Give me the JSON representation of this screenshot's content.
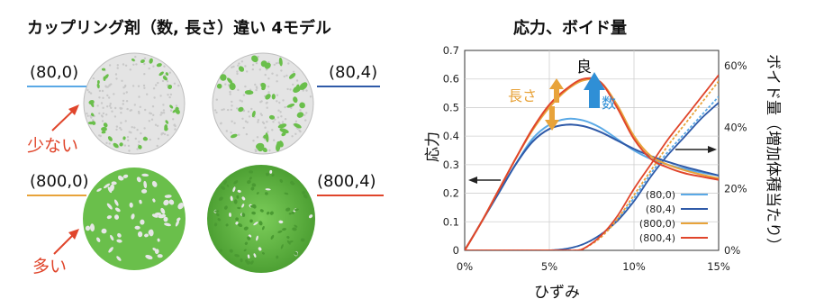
{
  "left_panel": {
    "title": "カップリング剤（数, 長さ）違い 4モデル",
    "models": [
      {
        "label": "(80,0)",
        "line_color": "#5aa9e6"
      },
      {
        "label": "(80,4)",
        "line_color": "#2f5aa8"
      },
      {
        "label": "(800,0)",
        "line_color": "#e8a33a"
      },
      {
        "label": "(800,4)",
        "line_color": "#e0452b"
      }
    ],
    "annotations": {
      "few": "少ない",
      "many": "多い"
    },
    "colors": {
      "particle": "#6abf4b",
      "matrix": "#d9d9d9",
      "arrow": "#e0452b"
    }
  },
  "right_panel": {
    "title": "応力、ボイド量",
    "annotations": {
      "good": "良",
      "length": "長さ",
      "number": "数"
    },
    "chart_data": {
      "type": "line",
      "xlabel": "ひずみ",
      "ylabel_left": "応力",
      "ylabel_right": "ボイド量（増加体積当たり）",
      "xlim": [
        0,
        15
      ],
      "ylim_left": [
        0,
        0.7
      ],
      "ylim_right": [
        0,
        65
      ],
      "x_ticks": [
        "0%",
        "5%",
        "10%",
        "15%"
      ],
      "y_ticks_left": [
        "0",
        "0.1",
        "0.2",
        "0.3",
        "0.4",
        "0.5",
        "0.6",
        "0.7"
      ],
      "y_ticks_right": [
        "0%",
        "20%",
        "40%",
        "60%"
      ],
      "grid": true,
      "legend_position": "bottom-right",
      "series": [
        {
          "name": "(80,0)",
          "color": "#5aa9e6",
          "stress": [
            [
              0,
              0
            ],
            [
              1,
              0.1
            ],
            [
              2,
              0.2
            ],
            [
              3,
              0.3
            ],
            [
              4,
              0.39
            ],
            [
              5,
              0.44
            ],
            [
              6,
              0.46
            ],
            [
              7,
              0.455
            ],
            [
              8,
              0.43
            ],
            [
              9,
              0.39
            ],
            [
              10,
              0.35
            ],
            [
              11,
              0.32
            ],
            [
              12,
              0.3
            ],
            [
              13,
              0.285
            ],
            [
              14,
              0.272
            ],
            [
              15,
              0.262
            ]
          ],
          "void": [
            [
              0,
              0
            ],
            [
              2,
              0
            ],
            [
              4,
              0
            ],
            [
              5,
              0
            ],
            [
              6,
              0.5
            ],
            [
              7,
              2
            ],
            [
              8,
              5
            ],
            [
              9,
              10
            ],
            [
              10,
              17
            ],
            [
              11,
              25
            ],
            [
              12,
              32
            ],
            [
              13,
              38
            ],
            [
              14,
              44
            ],
            [
              15,
              50
            ]
          ]
        },
        {
          "name": "(80,4)",
          "color": "#2f5aa8",
          "stress": [
            [
              0,
              0
            ],
            [
              1,
              0.1
            ],
            [
              2,
              0.2
            ],
            [
              3,
              0.3
            ],
            [
              4,
              0.38
            ],
            [
              5,
              0.425
            ],
            [
              6,
              0.44
            ],
            [
              7,
              0.435
            ],
            [
              8,
              0.415
            ],
            [
              9,
              0.385
            ],
            [
              10,
              0.355
            ],
            [
              11,
              0.33
            ],
            [
              12,
              0.31
            ],
            [
              13,
              0.292
            ],
            [
              14,
              0.277
            ],
            [
              15,
              0.262
            ]
          ],
          "void": [
            [
              0,
              0
            ],
            [
              2,
              0
            ],
            [
              4,
              0
            ],
            [
              5,
              0
            ],
            [
              6,
              0.5
            ],
            [
              7,
              2
            ],
            [
              8,
              5
            ],
            [
              9,
              9.5
            ],
            [
              10,
              16
            ],
            [
              11,
              24
            ],
            [
              12,
              31
            ],
            [
              13,
              37
            ],
            [
              14,
              43
            ],
            [
              15,
              48
            ]
          ]
        },
        {
          "name": "(800,0)",
          "color": "#e8a33a",
          "stress": [
            [
              0,
              0
            ],
            [
              1,
              0.1
            ],
            [
              2,
              0.21
            ],
            [
              3,
              0.32
            ],
            [
              4,
              0.42
            ],
            [
              5,
              0.5
            ],
            [
              6,
              0.56
            ],
            [
              7,
              0.595
            ],
            [
              8,
              0.59
            ],
            [
              9,
              0.51
            ],
            [
              10,
              0.4
            ],
            [
              11,
              0.33
            ],
            [
              12,
              0.3
            ],
            [
              13,
              0.28
            ],
            [
              14,
              0.265
            ],
            [
              15,
              0.252
            ]
          ],
          "void": [
            [
              0,
              0
            ],
            [
              5,
              0
            ],
            [
              6,
              0
            ],
            [
              6.5,
              0
            ],
            [
              7,
              0.5
            ],
            [
              8,
              4
            ],
            [
              9,
              10
            ],
            [
              10,
              18
            ],
            [
              11,
              26
            ],
            [
              12,
              34
            ],
            [
              13,
              41
            ],
            [
              14,
              48
            ],
            [
              15,
              55
            ]
          ]
        },
        {
          "name": "(800,4)",
          "color": "#e0452b",
          "stress": [
            [
              0,
              0
            ],
            [
              1,
              0.1
            ],
            [
              2,
              0.21
            ],
            [
              3,
              0.32
            ],
            [
              4,
              0.425
            ],
            [
              5,
              0.51
            ],
            [
              6,
              0.565
            ],
            [
              7,
              0.6
            ],
            [
              8,
              0.59
            ],
            [
              9,
              0.5
            ],
            [
              10,
              0.39
            ],
            [
              11,
              0.32
            ],
            [
              12,
              0.29
            ],
            [
              13,
              0.27
            ],
            [
              14,
              0.258
            ],
            [
              15,
              0.247
            ]
          ],
          "void": [
            [
              0,
              0
            ],
            [
              5,
              0
            ],
            [
              6,
              0
            ],
            [
              6.5,
              0
            ],
            [
              7,
              0.5
            ],
            [
              8,
              4.5
            ],
            [
              9,
              11
            ],
            [
              10,
              20
            ],
            [
              11,
              28
            ],
            [
              12,
              36
            ],
            [
              13,
              43
            ],
            [
              14,
              50
            ],
            [
              15,
              57
            ]
          ]
        }
      ]
    }
  }
}
